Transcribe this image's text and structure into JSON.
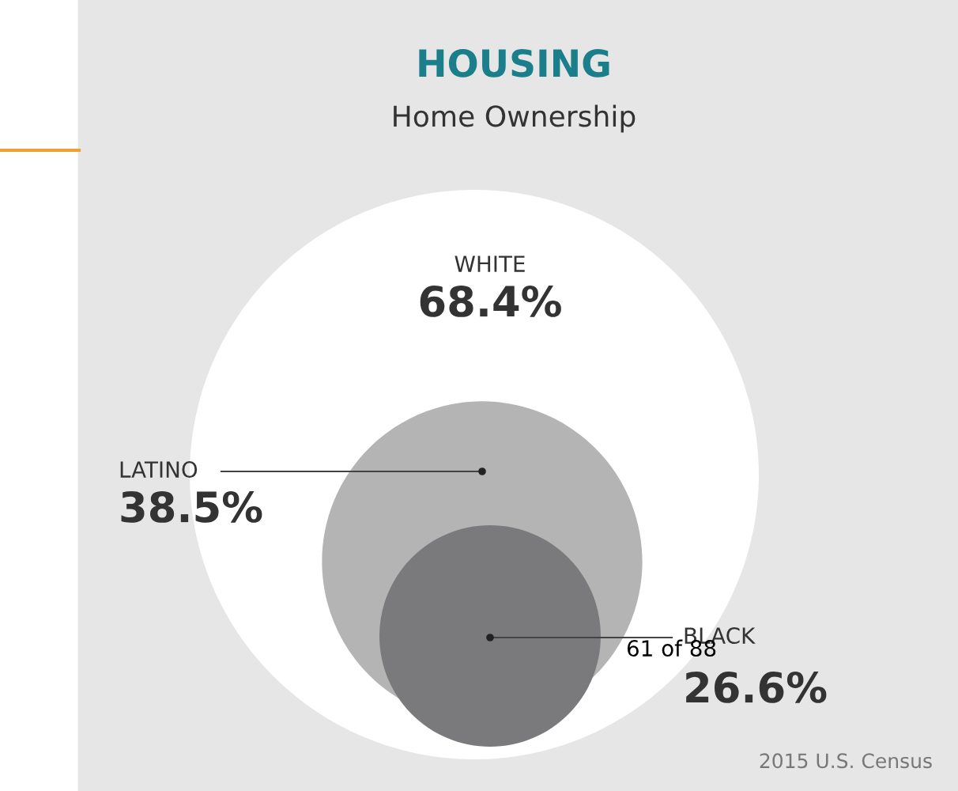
{
  "chart_data": {
    "type": "other",
    "title": "HOUSING",
    "subtitle": "Home Ownership",
    "categories": [
      "WHITE",
      "LATINO",
      "BLACK"
    ],
    "values": [
      68.4,
      38.5,
      26.6
    ],
    "value_labels": [
      "68.4%",
      "38.5%",
      "26.6%"
    ],
    "colors": [
      "#ffffff",
      "#b4b4b4",
      "#7a7a7c"
    ],
    "annotations": [
      "2015 U.S. Census",
      "61 of 88"
    ]
  }
}
